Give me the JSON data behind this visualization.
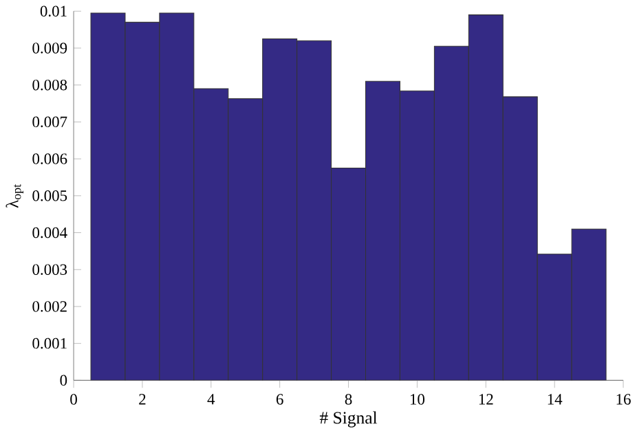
{
  "chart_data": {
    "type": "bar",
    "xlabel": "# Signal",
    "ylabel": "λ$_{opt}$",
    "x": [
      1,
      2,
      3,
      4,
      5,
      6,
      7,
      8,
      9,
      10,
      11,
      12,
      13,
      14,
      15
    ],
    "values": [
      0.00995,
      0.0097,
      0.00995,
      0.0079,
      0.00763,
      0.00925,
      0.0092,
      0.00575,
      0.0081,
      0.00784,
      0.00905,
      0.0099,
      0.00768,
      0.00342,
      0.0041
    ],
    "color": "#342a85",
    "xlim": [
      0,
      16
    ],
    "xticks": [
      0,
      2,
      4,
      6,
      8,
      10,
      12,
      14,
      16
    ],
    "ylim": [
      0,
      0.01
    ],
    "yticks": [
      0,
      0.001,
      0.002,
      0.003,
      0.004,
      0.005,
      0.006,
      0.007,
      0.008,
      0.009,
      0.01
    ],
    "grid": false
  }
}
